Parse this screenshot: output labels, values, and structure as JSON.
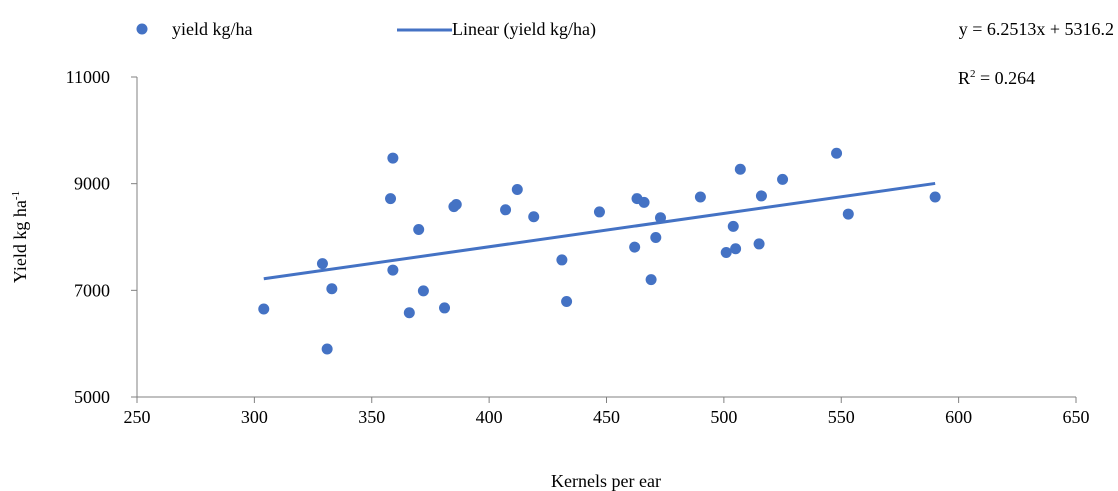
{
  "chart_data": {
    "type": "scatter",
    "xlabel": "Kernels per ear",
    "ylabel": "Yield kg ha",
    "ylabel_sup": "-1",
    "xlim": [
      250,
      650
    ],
    "ylim": [
      5000,
      11000
    ],
    "xticks": [
      250,
      300,
      350,
      400,
      450,
      500,
      550,
      600,
      650
    ],
    "yticks": [
      5000,
      7000,
      9000,
      11000
    ],
    "grid": false,
    "legend_position": "top-left",
    "series": [
      {
        "name": "yield kg/ha",
        "color": "#4472C4",
        "points": [
          [
            304,
            6650
          ],
          [
            329,
            7500
          ],
          [
            331,
            5900
          ],
          [
            333,
            7030
          ],
          [
            358,
            8720
          ],
          [
            359,
            7380
          ],
          [
            359,
            9480
          ],
          [
            366,
            6580
          ],
          [
            370,
            8140
          ],
          [
            372,
            6990
          ],
          [
            381,
            6670
          ],
          [
            385,
            8570
          ],
          [
            386,
            8610
          ],
          [
            407,
            8510
          ],
          [
            412,
            8890
          ],
          [
            419,
            8380
          ],
          [
            431,
            7570
          ],
          [
            433,
            6790
          ],
          [
            447,
            8470
          ],
          [
            462,
            7810
          ],
          [
            463,
            8720
          ],
          [
            466,
            8650
          ],
          [
            469,
            7200
          ],
          [
            471,
            7990
          ],
          [
            473,
            8360
          ],
          [
            490,
            8750
          ],
          [
            501,
            7710
          ],
          [
            504,
            8200
          ],
          [
            505,
            7780
          ],
          [
            507,
            9270
          ],
          [
            515,
            7870
          ],
          [
            516,
            8770
          ],
          [
            525,
            9080
          ],
          [
            548,
            9570
          ],
          [
            553,
            8430
          ],
          [
            590,
            8750
          ]
        ]
      }
    ],
    "trendline": {
      "name": "Linear (yield kg/ha)",
      "color": "#4472C4",
      "slope": 6.2513,
      "intercept": 5316.2,
      "x_range": [
        304,
        590
      ]
    },
    "annotations": {
      "equation": "y = 6.2513x + 5316.2",
      "r2_prefix": "R",
      "r2_sup": "2",
      "r2_value": " = 0.264"
    }
  }
}
